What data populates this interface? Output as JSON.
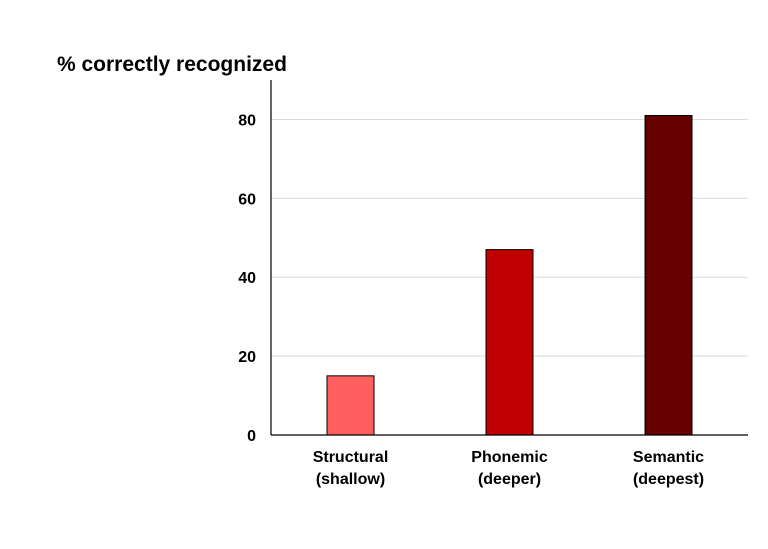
{
  "chart_data": {
    "type": "bar",
    "title": "",
    "ylabel": "% correctly recognized",
    "xlabel": "",
    "categories": [
      [
        "Structural",
        "(shallow)"
      ],
      [
        "Phonemic",
        "(deeper)"
      ],
      [
        "Semantic",
        "(deepest)"
      ]
    ],
    "values": [
      15,
      47,
      81
    ],
    "colors": [
      "#ff5f5f",
      "#c00000",
      "#660000"
    ],
    "ylim": [
      0,
      90
    ],
    "yticks": [
      0,
      20,
      40,
      60,
      80
    ],
    "grid": true,
    "legend": "none"
  }
}
